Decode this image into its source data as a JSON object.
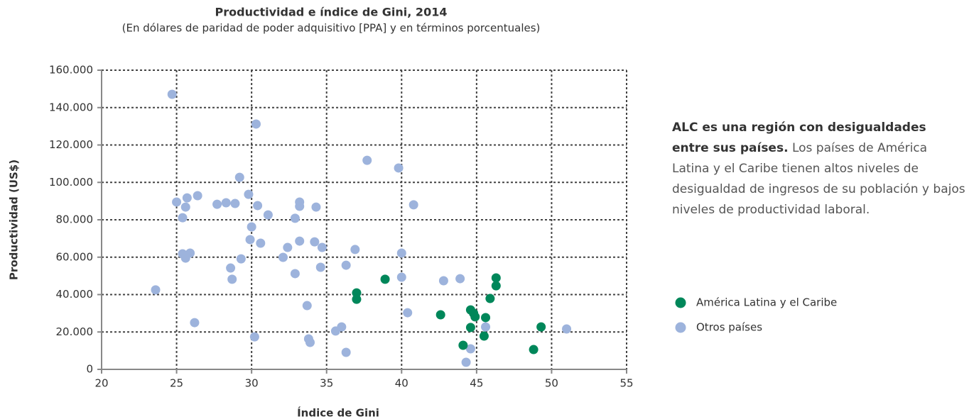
{
  "chart_data": {
    "type": "scatter",
    "title": "Productividad e índice de Gini, 2014",
    "subtitle": "(En dólares de paridad de poder adquisitivo [PPA] y en términos porcentuales)",
    "xlabel": "Índice de Gini",
    "ylabel": "Productividad (US$)",
    "xlim": [
      20,
      55
    ],
    "xticks": [
      20,
      25,
      30,
      35,
      40,
      45,
      50,
      55
    ],
    "ylim": [
      0,
      160000
    ],
    "yticks": [
      0,
      {
        "value": 20000,
        "label": "20.000"
      },
      {
        "value": 40000,
        "label": "40.000"
      },
      {
        "value": 60000,
        "label": "60.000"
      },
      {
        "value": 80000,
        "label": "80.000"
      },
      {
        "value": 100000,
        "label": "100.000"
      },
      {
        "value": 120000,
        "label": "120.000"
      },
      {
        "value": 140000,
        "label": "140.000"
      },
      {
        "value": 160000,
        "label": "160.000"
      }
    ],
    "grid": true,
    "series": [
      {
        "name": "América Latina y el Caribe",
        "color": "#00875a",
        "x": [
          38.9,
          37.0,
          37.0,
          42.6,
          44.6,
          44.8,
          44.9,
          45.6,
          45.9,
          46.3,
          46.3,
          44.6,
          44.1,
          45.5,
          49.3,
          48.8
        ],
        "values": [
          48200,
          40900,
          37500,
          29200,
          31800,
          30000,
          28100,
          27700,
          37900,
          48900,
          44700,
          22400,
          12900,
          17800,
          22700,
          10600
        ]
      },
      {
        "name": "Otros países",
        "color": "#9db3dc",
        "x": [
          24.7,
          30.3,
          29.2,
          25.0,
          25.6,
          25.7,
          26.4,
          25.4,
          27.7,
          28.3,
          28.9,
          29.8,
          30.4,
          31.1,
          30.0,
          32.9,
          33.2,
          33.2,
          34.3,
          37.7,
          39.8,
          40.8,
          29.9,
          30.6,
          29.3,
          28.6,
          28.7,
          25.4,
          25.6,
          25.9,
          32.1,
          32.4,
          33.2,
          34.2,
          34.7,
          34.6,
          32.9,
          36.3,
          36.9,
          40.0,
          40.0,
          42.8,
          43.9,
          23.6,
          33.7,
          40.4,
          26.2,
          30.2,
          33.8,
          33.9,
          36.0,
          35.6,
          36.3,
          44.6,
          44.3,
          45.6,
          51.0
        ],
        "values": [
          147100,
          131200,
          102700,
          89500,
          86800,
          91700,
          92900,
          81100,
          88300,
          89100,
          88700,
          93600,
          87600,
          82600,
          76200,
          80800,
          89500,
          87200,
          86800,
          111800,
          107700,
          88000,
          69400,
          67500,
          59100,
          54200,
          48200,
          61800,
          59500,
          62200,
          59900,
          65200,
          68600,
          68200,
          65200,
          54600,
          51200,
          55700,
          64100,
          62200,
          49300,
          47400,
          48500,
          42500,
          34100,
          30300,
          25000,
          17400,
          16300,
          14400,
          22700,
          20500,
          9100,
          11000,
          3800,
          22700,
          21600
        ]
      }
    ],
    "note_bold": "ALC es una región con desigualdades entre sus países.",
    "note_text": "Los países de América Latina y el Caribe tienen altos niveles de desigualdad de ingresos de su población y bajos niveles de productividad laboral."
  }
}
